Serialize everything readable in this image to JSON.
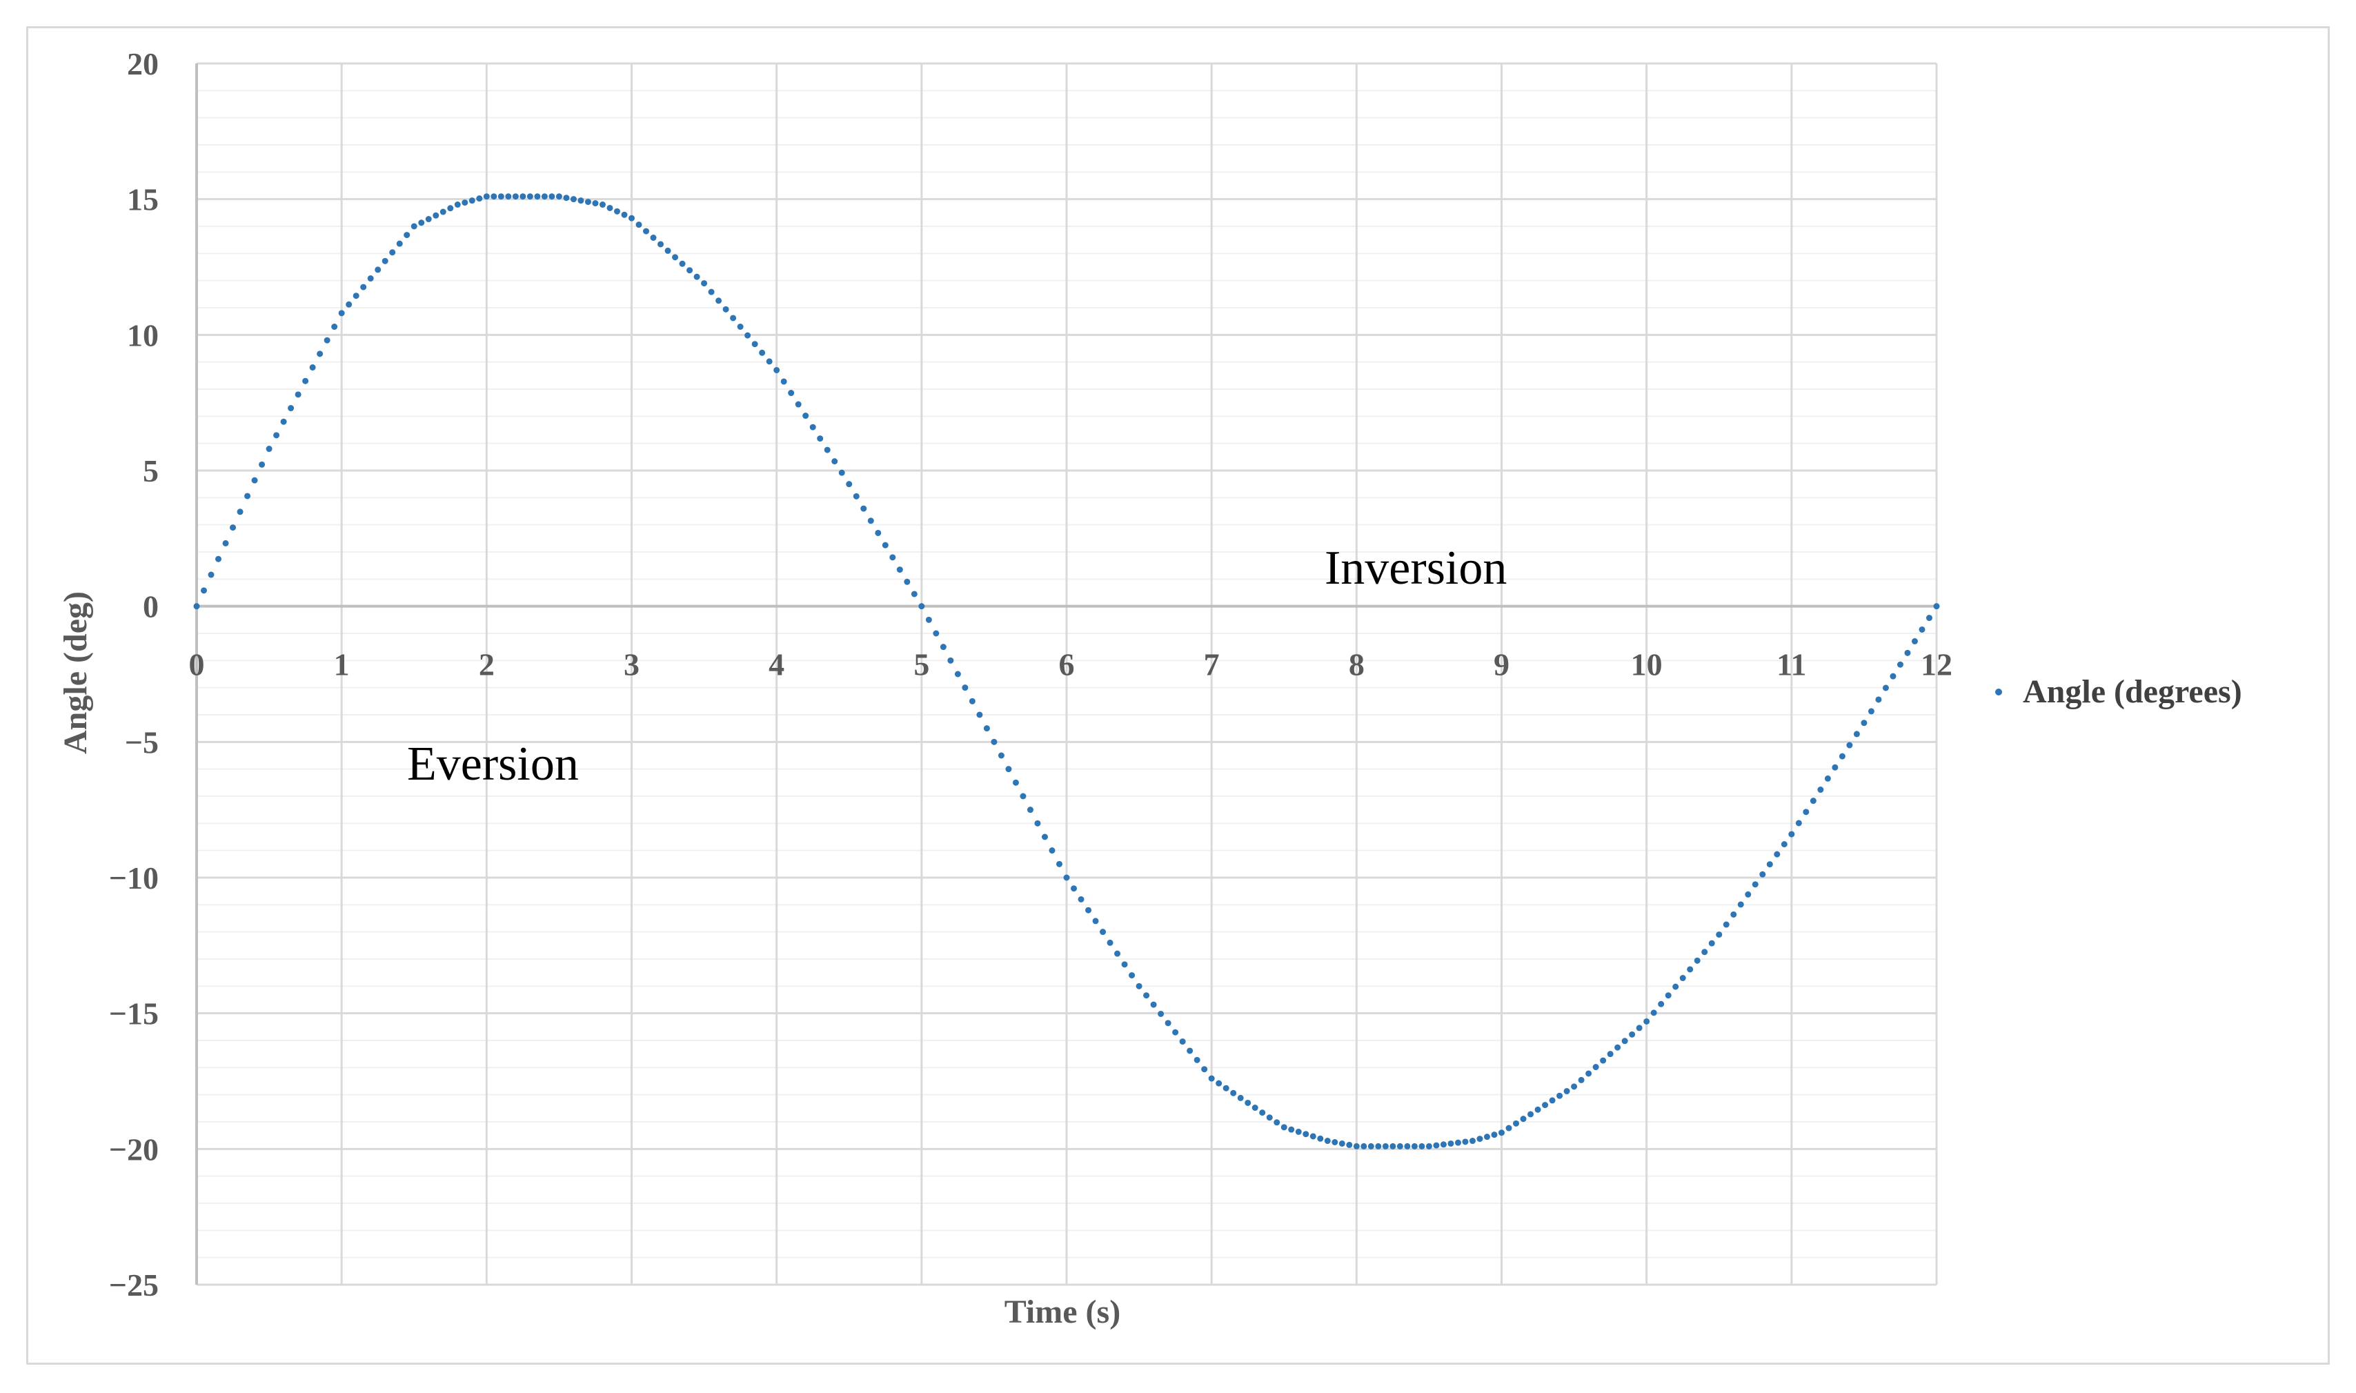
{
  "chart_data": {
    "type": "scatter",
    "xlabel": "Time (s)",
    "ylabel": "Angle (deg)",
    "xlim": [
      0,
      12
    ],
    "ylim": [
      -25,
      20
    ],
    "x_ticks": [
      0,
      1,
      2,
      3,
      4,
      5,
      6,
      7,
      8,
      9,
      10,
      11,
      12
    ],
    "y_ticks": [
      20,
      15,
      10,
      5,
      0,
      -5,
      -10,
      -15,
      -20,
      -25
    ],
    "y_tick_labels": [
      "20",
      "15",
      "10",
      "5",
      "0",
      "−5",
      "−10",
      "−15",
      "−20",
      "−25"
    ],
    "grid": true,
    "minor_grid": true,
    "legend_position": "right",
    "annotations": [
      "Inversion",
      "Eversion"
    ],
    "series": [
      {
        "name": "Angle (degrees)",
        "color": "#2e75b6",
        "sampling_interval_s": 0.05,
        "description_of_shape": "piecewise sinusoid with flat plateaus",
        "x": [
          0,
          0.5,
          1,
          1.5,
          1.8,
          2,
          2.5,
          2.8,
          3,
          3.5,
          4,
          4.5,
          5,
          5.5,
          6,
          6.5,
          7,
          7.5,
          7.8,
          8,
          8.5,
          8.8,
          9,
          9.5,
          10,
          10.5,
          11,
          11.5,
          12
        ],
        "y": [
          0,
          5.8,
          10.8,
          14.0,
          14.8,
          15.1,
          15.1,
          14.8,
          14.3,
          11.9,
          8.7,
          4.5,
          0,
          -5.0,
          -10.0,
          -14.0,
          -17.4,
          -19.2,
          -19.7,
          -19.9,
          -19.9,
          -19.7,
          -19.4,
          -17.7,
          -15.3,
          -12.1,
          -8.4,
          -4.3,
          0
        ]
      }
    ]
  }
}
